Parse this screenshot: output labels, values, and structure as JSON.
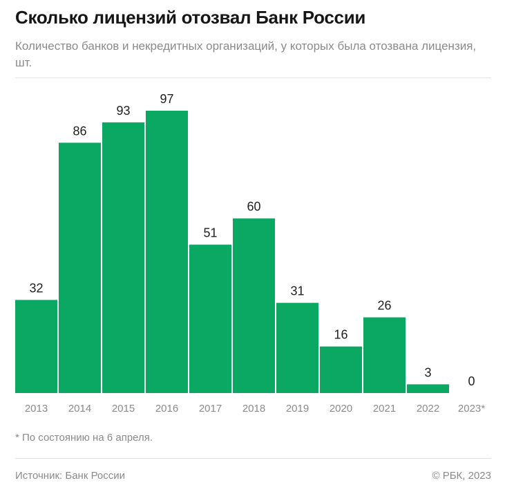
{
  "header": {
    "title": "Сколько лицензий отозвал Банк России",
    "subtitle": "Количество банков и некредитных организаций, у которых была отозвана лицензия, шт."
  },
  "footer": {
    "note": "* По состоянию на 6 апреля.",
    "source": "Источник: Банк России",
    "copyright": "© РБК, 2023"
  },
  "colors": {
    "bar": "#0aa863",
    "value_label": "#1f1f1f",
    "tick_label": "#8a8a8a"
  },
  "chart_data": {
    "type": "bar",
    "title": "Сколько лицензий отозвал Банк России",
    "subtitle": "Количество банков и некредитных организаций, у которых была отозвана лицензия, шт.",
    "categories": [
      "2013",
      "2014",
      "2015",
      "2016",
      "2017",
      "2018",
      "2019",
      "2020",
      "2021",
      "2022",
      "2023*"
    ],
    "values": [
      32,
      86,
      93,
      97,
      51,
      60,
      31,
      16,
      26,
      3,
      0
    ],
    "xlabel": "",
    "ylabel": "",
    "ylim": [
      0,
      97
    ],
    "grid": false,
    "legend": "none",
    "data_labels": true
  }
}
